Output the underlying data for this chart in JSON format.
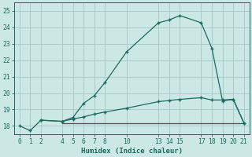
{
  "bg_color": "#cce8e4",
  "grid_color": "#aacccc",
  "line_color": "#1a6b5e",
  "xlabel": "Humidex (Indice chaleur)",
  "xlim": [
    -0.5,
    21.5
  ],
  "ylim": [
    17.5,
    25.5
  ],
  "yticks": [
    18,
    19,
    20,
    21,
    22,
    23,
    24,
    25
  ],
  "xticks": [
    0,
    1,
    2,
    4,
    5,
    6,
    7,
    8,
    10,
    13,
    14,
    15,
    17,
    18,
    19,
    20,
    21
  ],
  "line1_x": [
    0,
    1,
    2,
    4,
    5,
    6,
    7,
    8,
    10,
    13,
    14,
    15,
    17,
    18,
    19,
    20,
    21
  ],
  "line1_y": [
    18.0,
    17.72,
    18.35,
    18.28,
    18.52,
    19.38,
    19.85,
    20.65,
    22.5,
    24.28,
    24.45,
    24.72,
    24.28,
    22.72,
    19.52,
    19.62,
    18.18
  ],
  "line2_x": [
    2,
    4,
    5,
    6,
    7,
    8,
    10,
    13,
    14,
    15,
    17,
    18,
    19,
    20,
    21
  ],
  "line2_y": [
    18.35,
    18.28,
    18.42,
    18.55,
    18.72,
    18.85,
    19.08,
    19.48,
    19.55,
    19.62,
    19.72,
    19.58,
    19.58,
    19.62,
    18.18
  ],
  "line3_x": [
    4,
    5,
    6,
    7,
    8,
    10,
    13,
    14,
    15,
    17,
    18,
    21
  ],
  "line3_y": [
    18.18,
    18.18,
    18.18,
    18.18,
    18.18,
    18.18,
    18.18,
    18.18,
    18.18,
    18.18,
    18.18,
    18.18
  ],
  "marker": "+"
}
